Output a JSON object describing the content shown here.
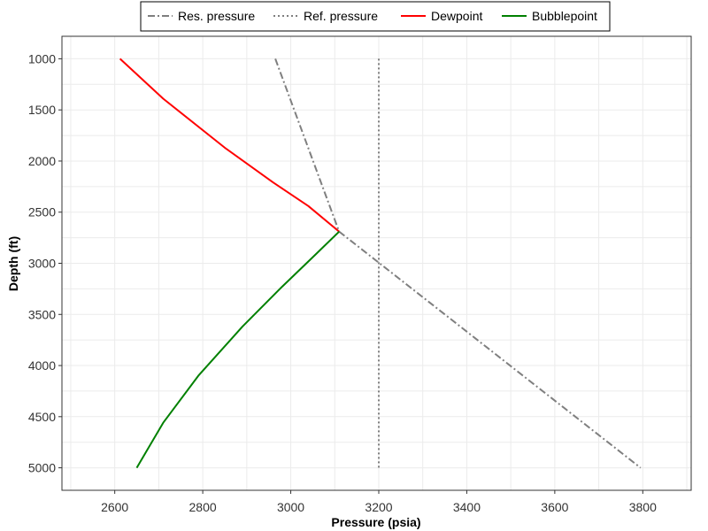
{
  "chart_data": {
    "type": "line",
    "xlabel": "Pressure (psia)",
    "ylabel": "Depth (ft)",
    "xlim": [
      2480,
      3910
    ],
    "ylim": [
      780,
      5220
    ],
    "y_reversed": true,
    "grid": true,
    "legend_position": "top",
    "x_ticks": [
      2600,
      2800,
      3000,
      3200,
      3400,
      3600,
      3800
    ],
    "y_ticks": [
      1000,
      1500,
      2000,
      2500,
      3000,
      3500,
      4000,
      4500,
      5000
    ],
    "series": [
      {
        "name": "Res. pressure",
        "color": "#7f7f7f",
        "dash": "dashdot",
        "points": [
          [
            2965,
            1000
          ],
          [
            3110,
            2690
          ],
          [
            3795,
            5000
          ]
        ]
      },
      {
        "name": "Ref. pressure",
        "color": "#7f7f7f",
        "dash": "dotted",
        "points": [
          [
            3200,
            1000
          ],
          [
            3200,
            5000
          ]
        ]
      },
      {
        "name": "Dewpoint",
        "color": "#ff0000",
        "dash": "solid",
        "points": [
          [
            2612,
            1000
          ],
          [
            2710,
            1390
          ],
          [
            2850,
            1870
          ],
          [
            2960,
            2210
          ],
          [
            3040,
            2440
          ],
          [
            3110,
            2690
          ]
        ]
      },
      {
        "name": "Bubblepoint",
        "color": "#008000",
        "dash": "solid",
        "points": [
          [
            3110,
            2690
          ],
          [
            3050,
            2940
          ],
          [
            2980,
            3230
          ],
          [
            2890,
            3620
          ],
          [
            2790,
            4100
          ],
          [
            2710,
            4560
          ],
          [
            2650,
            5000
          ]
        ]
      }
    ]
  }
}
